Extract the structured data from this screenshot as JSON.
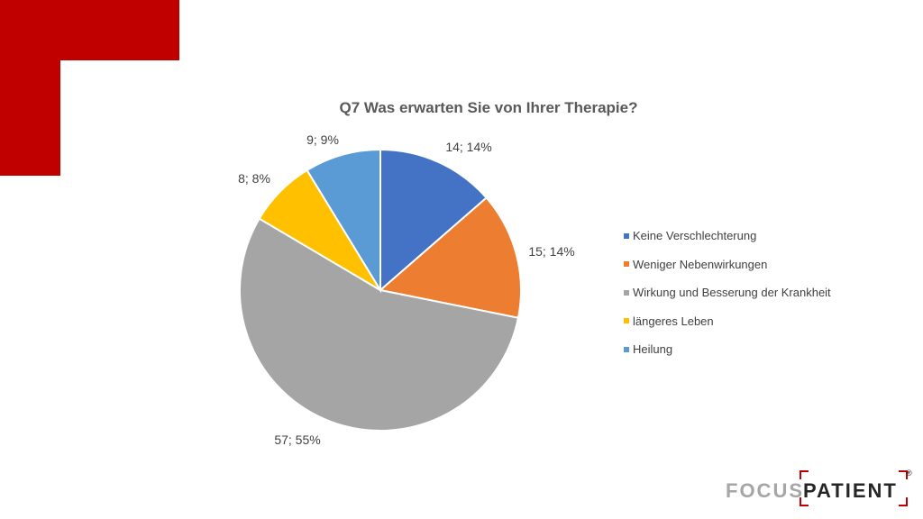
{
  "chart_data": {
    "type": "pie",
    "title": "Q7 Was erwarten Sie von Ihrer Therapie?",
    "legend_position": "right",
    "slices": [
      {
        "name": "Keine Verschlechterung",
        "value": 14,
        "percent": "14%",
        "label": "14; 14%",
        "color": "#4472c4"
      },
      {
        "name": "Weniger Nebenwirkungen",
        "value": 15,
        "percent": "14%",
        "label": "15; 14%",
        "color": "#ed7d31"
      },
      {
        "name": "Wirkung und Besserung der Krankheit",
        "value": 57,
        "percent": "55%",
        "label": "57; 55%",
        "color": "#a5a5a5"
      },
      {
        "name": "längeres Leben",
        "value": 8,
        "percent": "8%",
        "label": "8; 8%",
        "color": "#ffc000"
      },
      {
        "name": "Heilung",
        "value": 9,
        "percent": "9%",
        "label": "9; 9%",
        "color": "#5b9bd5"
      }
    ]
  },
  "brand": {
    "accent_color": "#c00000",
    "logo_word_1": "FOCUS",
    "logo_word_2": "PATIENT",
    "logo_mark": "®"
  }
}
